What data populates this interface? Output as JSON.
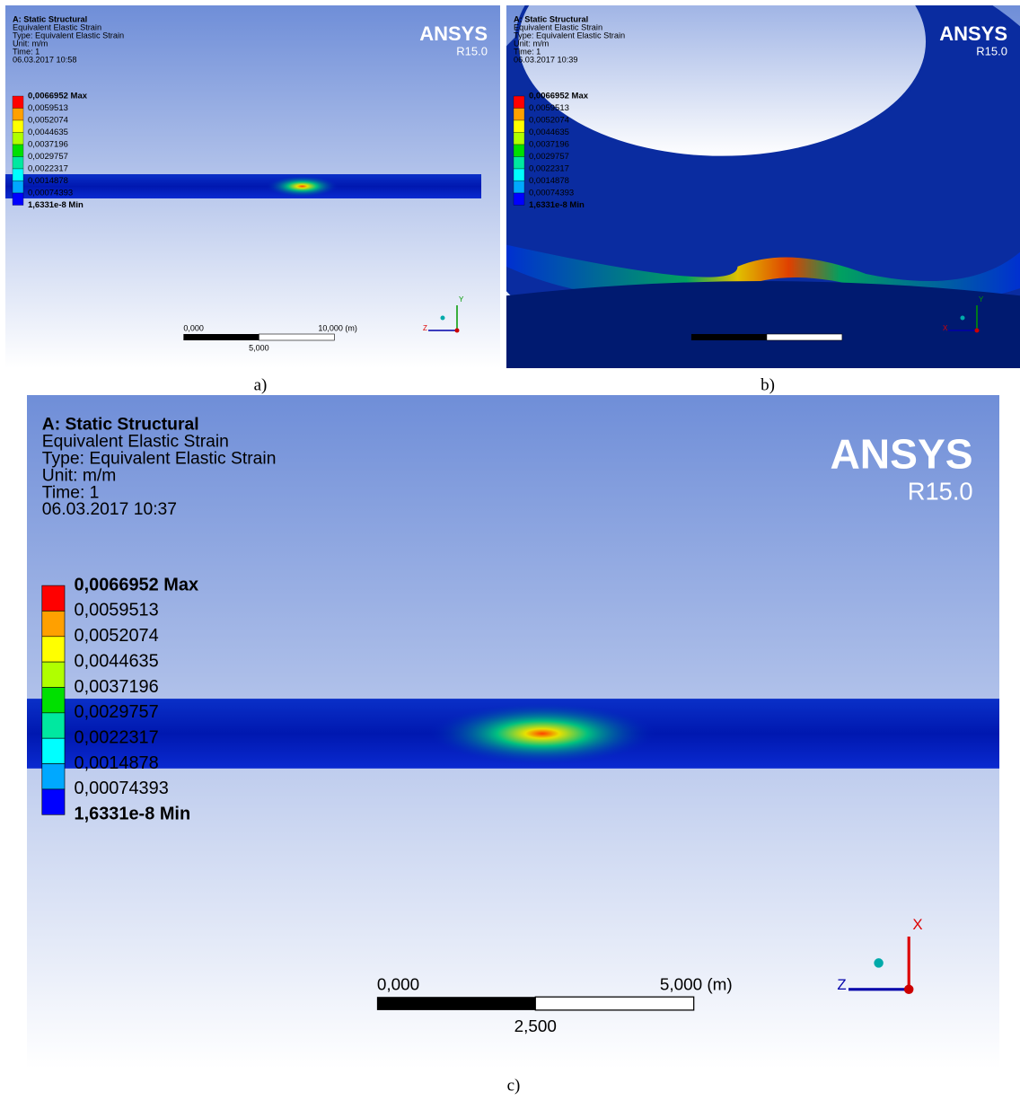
{
  "panels": [
    {
      "caption": "a)",
      "header": [
        "A: Static Structural",
        "Equivalent Elastic Strain",
        "Type: Equivalent Elastic Strain",
        "Unit: m/m",
        "Time: 1",
        "06.03.2017 10:58"
      ],
      "legend": [
        "0,0066952 Max",
        "0,0059513",
        "0,0052074",
        "0,0044635",
        "0,0037196",
        "0,0029757",
        "0,0022317",
        "0,0014878",
        "0,00074393",
        "1,6331e-8 Min"
      ],
      "logo": "ANSYS",
      "version": "R15.0",
      "scale": [
        "0,000",
        "10,000 (m)",
        "5,000"
      ],
      "axes": [
        "Y",
        "Z"
      ]
    },
    {
      "caption": "b)",
      "header": [
        "A: Static Structural",
        "Equivalent Elastic Strain",
        "Type: Equivalent Elastic Strain",
        "Unit: m/m",
        "Time: 1",
        "06.03.2017 10:39"
      ],
      "legend": [
        "0,0066952 Max",
        "0,0059513",
        "0,0052074",
        "0,0044635",
        "0,0037196",
        "0,0029757",
        "0,0022317",
        "0,0014878",
        "0,00074393",
        "1,6331e-8 Min"
      ],
      "logo": "ANSYS",
      "version": "R15.0",
      "scale": [],
      "axes": [
        "Y",
        "X"
      ]
    },
    {
      "caption": "c)",
      "header": [
        "A: Static Structural",
        "Equivalent Elastic Strain",
        "Type: Equivalent Elastic Strain",
        "Unit: m/m",
        "Time: 1",
        "06.03.2017 10:37"
      ],
      "legend": [
        "0,0066952 Max",
        "0,0059513",
        "0,0052074",
        "0,0044635",
        "0,0037196",
        "0,0029757",
        "0,0022317",
        "0,0014878",
        "0,00074393",
        "1,6331e-8 Min"
      ],
      "logo": "ANSYS",
      "version": "R15.0",
      "scale": [
        "0,000",
        "5,000 (m)",
        "2,500"
      ],
      "axes": [
        "X",
        "Z"
      ]
    }
  ]
}
